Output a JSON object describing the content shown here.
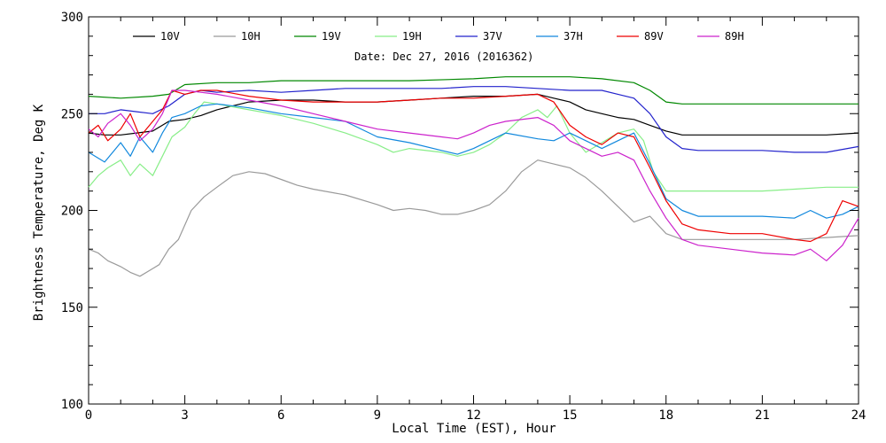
{
  "chart_data": {
    "type": "line",
    "title": "",
    "subtitle": "Date: Dec 27, 2016 (2016362)",
    "xlabel": "Local Time (EST), Hour",
    "ylabel": "Brightness Temperature, Deg K",
    "xlim": [
      0,
      24
    ],
    "ylim": [
      100,
      300
    ],
    "x_ticks": [
      0,
      3,
      6,
      9,
      12,
      15,
      18,
      21,
      24
    ],
    "y_ticks": [
      100,
      150,
      200,
      250,
      300
    ],
    "x_tick_labels": [
      "0",
      "3",
      "6",
      "9",
      "12",
      "15",
      "18",
      "21",
      "24"
    ],
    "y_tick_labels": [
      "100",
      "150",
      "200",
      "250",
      "300"
    ],
    "grid": false,
    "legend_position": "top",
    "series": [
      {
        "name": "10V",
        "color": "#000000",
        "points": [
          [
            0,
            240
          ],
          [
            0.5,
            239
          ],
          [
            1,
            239
          ],
          [
            1.5,
            240
          ],
          [
            2,
            241
          ],
          [
            2.5,
            246
          ],
          [
            3,
            247
          ],
          [
            3.5,
            249
          ],
          [
            4,
            252
          ],
          [
            5,
            256
          ],
          [
            6,
            257
          ],
          [
            7,
            257
          ],
          [
            8,
            256
          ],
          [
            9,
            256
          ],
          [
            10,
            257
          ],
          [
            11,
            258
          ],
          [
            12,
            259
          ],
          [
            13,
            259
          ],
          [
            14,
            260
          ],
          [
            14.5,
            258
          ],
          [
            15,
            256
          ],
          [
            15.5,
            252
          ],
          [
            16,
            250
          ],
          [
            16.5,
            248
          ],
          [
            17,
            247
          ],
          [
            17.5,
            244
          ],
          [
            18,
            241
          ],
          [
            18.5,
            239
          ],
          [
            19,
            239
          ],
          [
            20,
            239
          ],
          [
            21,
            239
          ],
          [
            22,
            239
          ],
          [
            23,
            239
          ],
          [
            24,
            240
          ]
        ]
      },
      {
        "name": "10H",
        "color": "#9a9a9a",
        "points": [
          [
            0,
            180
          ],
          [
            0.3,
            178
          ],
          [
            0.6,
            174
          ],
          [
            1,
            171
          ],
          [
            1.3,
            168
          ],
          [
            1.6,
            166
          ],
          [
            2,
            170
          ],
          [
            2.2,
            172
          ],
          [
            2.5,
            180
          ],
          [
            2.8,
            185
          ],
          [
            3.2,
            200
          ],
          [
            3.6,
            207
          ],
          [
            4,
            212
          ],
          [
            4.5,
            218
          ],
          [
            5,
            220
          ],
          [
            5.5,
            219
          ],
          [
            6,
            216
          ],
          [
            6.5,
            213
          ],
          [
            7,
            211
          ],
          [
            8,
            208
          ],
          [
            9,
            203
          ],
          [
            9.5,
            200
          ],
          [
            10,
            201
          ],
          [
            10.5,
            200
          ],
          [
            11,
            198
          ],
          [
            11.5,
            198
          ],
          [
            12,
            200
          ],
          [
            12.5,
            203
          ],
          [
            13,
            210
          ],
          [
            13.5,
            220
          ],
          [
            14,
            226
          ],
          [
            14.5,
            224
          ],
          [
            15,
            222
          ],
          [
            15.5,
            217
          ],
          [
            16,
            210
          ],
          [
            16.5,
            202
          ],
          [
            17,
            194
          ],
          [
            17.5,
            197
          ],
          [
            18,
            188
          ],
          [
            18.5,
            185
          ],
          [
            19,
            185
          ],
          [
            20,
            185
          ],
          [
            21,
            185
          ],
          [
            22,
            185
          ],
          [
            23,
            186
          ],
          [
            24,
            187
          ]
        ]
      },
      {
        "name": "19V",
        "color": "#008800",
        "points": [
          [
            0,
            259
          ],
          [
            1,
            258
          ],
          [
            2,
            259
          ],
          [
            2.5,
            260
          ],
          [
            3,
            265
          ],
          [
            4,
            266
          ],
          [
            5,
            266
          ],
          [
            6,
            267
          ],
          [
            8,
            267
          ],
          [
            10,
            267
          ],
          [
            12,
            268
          ],
          [
            13,
            269
          ],
          [
            14,
            269
          ],
          [
            15,
            269
          ],
          [
            16,
            268
          ],
          [
            17,
            266
          ],
          [
            17.5,
            262
          ],
          [
            18,
            256
          ],
          [
            18.5,
            255
          ],
          [
            19,
            255
          ],
          [
            20,
            255
          ],
          [
            22,
            255
          ],
          [
            24,
            255
          ]
        ]
      },
      {
        "name": "19H",
        "color": "#88ee88",
        "points": [
          [
            0,
            212
          ],
          [
            0.3,
            218
          ],
          [
            0.6,
            222
          ],
          [
            1,
            226
          ],
          [
            1.3,
            218
          ],
          [
            1.6,
            224
          ],
          [
            2,
            218
          ],
          [
            2.3,
            228
          ],
          [
            2.6,
            238
          ],
          [
            3,
            243
          ],
          [
            3.3,
            250
          ],
          [
            3.6,
            256
          ],
          [
            4,
            255
          ],
          [
            5,
            252
          ],
          [
            6,
            249
          ],
          [
            7,
            245
          ],
          [
            8,
            240
          ],
          [
            9,
            234
          ],
          [
            9.5,
            230
          ],
          [
            10,
            232
          ],
          [
            11,
            230
          ],
          [
            11.5,
            228
          ],
          [
            12,
            230
          ],
          [
            12.5,
            234
          ],
          [
            13,
            240
          ],
          [
            13.5,
            248
          ],
          [
            14,
            252
          ],
          [
            14.3,
            248
          ],
          [
            14.6,
            254
          ],
          [
            15,
            240
          ],
          [
            15.5,
            230
          ],
          [
            16,
            235
          ],
          [
            16.5,
            240
          ],
          [
            17,
            242
          ],
          [
            17.3,
            236
          ],
          [
            17.6,
            220
          ],
          [
            18,
            210
          ],
          [
            19,
            210
          ],
          [
            20,
            210
          ],
          [
            21,
            210
          ],
          [
            22,
            211
          ],
          [
            23,
            212
          ],
          [
            24,
            212
          ]
        ]
      },
      {
        "name": "37V",
        "color": "#2222cc",
        "points": [
          [
            0,
            250
          ],
          [
            0.5,
            250
          ],
          [
            1,
            252
          ],
          [
            1.5,
            251
          ],
          [
            2,
            250
          ],
          [
            2.5,
            254
          ],
          [
            3,
            260
          ],
          [
            3.5,
            262
          ],
          [
            4,
            261
          ],
          [
            5,
            262
          ],
          [
            6,
            261
          ],
          [
            7,
            262
          ],
          [
            8,
            263
          ],
          [
            9,
            263
          ],
          [
            10,
            263
          ],
          [
            11,
            263
          ],
          [
            12,
            264
          ],
          [
            13,
            264
          ],
          [
            14,
            263
          ],
          [
            15,
            262
          ],
          [
            16,
            262
          ],
          [
            16.5,
            260
          ],
          [
            17,
            258
          ],
          [
            17.5,
            250
          ],
          [
            18,
            238
          ],
          [
            18.5,
            232
          ],
          [
            19,
            231
          ],
          [
            20,
            231
          ],
          [
            21,
            231
          ],
          [
            22,
            230
          ],
          [
            23,
            230
          ],
          [
            24,
            233
          ]
        ]
      },
      {
        "name": "37H",
        "color": "#1188dd",
        "points": [
          [
            0,
            230
          ],
          [
            0.5,
            225
          ],
          [
            1,
            235
          ],
          [
            1.3,
            228
          ],
          [
            1.6,
            238
          ],
          [
            2,
            230
          ],
          [
            2.3,
            240
          ],
          [
            2.6,
            248
          ],
          [
            3,
            250
          ],
          [
            3.5,
            254
          ],
          [
            4,
            255
          ],
          [
            5,
            253
          ],
          [
            6,
            250
          ],
          [
            7,
            248
          ],
          [
            8,
            246
          ],
          [
            9,
            238
          ],
          [
            10,
            235
          ],
          [
            11,
            231
          ],
          [
            11.5,
            229
          ],
          [
            12,
            232
          ],
          [
            12.5,
            236
          ],
          [
            13,
            240
          ],
          [
            14,
            237
          ],
          [
            14.5,
            236
          ],
          [
            15,
            240
          ],
          [
            15.5,
            236
          ],
          [
            16,
            232
          ],
          [
            16.5,
            236
          ],
          [
            17,
            240
          ],
          [
            17.5,
            224
          ],
          [
            18,
            206
          ],
          [
            18.5,
            200
          ],
          [
            19,
            197
          ],
          [
            20,
            197
          ],
          [
            21,
            197
          ],
          [
            22,
            196
          ],
          [
            22.5,
            200
          ],
          [
            23,
            196
          ],
          [
            23.5,
            198
          ],
          [
            24,
            202
          ]
        ]
      },
      {
        "name": "89V",
        "color": "#ee0000",
        "points": [
          [
            0,
            240
          ],
          [
            0.3,
            244
          ],
          [
            0.6,
            236
          ],
          [
            1,
            242
          ],
          [
            1.3,
            250
          ],
          [
            1.6,
            238
          ],
          [
            2,
            246
          ],
          [
            2.3,
            252
          ],
          [
            2.6,
            262
          ],
          [
            3,
            260
          ],
          [
            3.5,
            262
          ],
          [
            4,
            262
          ],
          [
            5,
            259
          ],
          [
            6,
            257
          ],
          [
            7,
            256
          ],
          [
            8,
            256
          ],
          [
            9,
            256
          ],
          [
            10,
            257
          ],
          [
            11,
            258
          ],
          [
            12,
            258
          ],
          [
            13,
            259
          ],
          [
            14,
            260
          ],
          [
            14.5,
            256
          ],
          [
            15,
            244
          ],
          [
            15.5,
            238
          ],
          [
            16,
            234
          ],
          [
            16.5,
            240
          ],
          [
            17,
            238
          ],
          [
            17.5,
            222
          ],
          [
            18,
            205
          ],
          [
            18.5,
            193
          ],
          [
            19,
            190
          ],
          [
            20,
            188
          ],
          [
            21,
            188
          ],
          [
            22,
            185
          ],
          [
            22.5,
            184
          ],
          [
            23,
            188
          ],
          [
            23.5,
            205
          ],
          [
            24,
            202
          ]
        ]
      },
      {
        "name": "89H",
        "color": "#cc22cc",
        "points": [
          [
            0,
            242
          ],
          [
            0.3,
            238
          ],
          [
            0.6,
            245
          ],
          [
            1,
            250
          ],
          [
            1.3,
            244
          ],
          [
            1.6,
            236
          ],
          [
            2,
            242
          ],
          [
            2.3,
            250
          ],
          [
            2.6,
            262
          ],
          [
            3,
            262
          ],
          [
            3.5,
            261
          ],
          [
            4,
            260
          ],
          [
            5,
            257
          ],
          [
            6,
            254
          ],
          [
            7,
            250
          ],
          [
            8,
            246
          ],
          [
            9,
            242
          ],
          [
            10,
            240
          ],
          [
            11,
            238
          ],
          [
            11.5,
            237
          ],
          [
            12,
            240
          ],
          [
            12.5,
            244
          ],
          [
            13,
            246
          ],
          [
            14,
            248
          ],
          [
            14.5,
            244
          ],
          [
            15,
            236
          ],
          [
            15.5,
            232
          ],
          [
            16,
            228
          ],
          [
            16.5,
            230
          ],
          [
            17,
            226
          ],
          [
            17.5,
            210
          ],
          [
            18,
            196
          ],
          [
            18.5,
            185
          ],
          [
            19,
            182
          ],
          [
            20,
            180
          ],
          [
            21,
            178
          ],
          [
            22,
            177
          ],
          [
            22.5,
            180
          ],
          [
            23,
            174
          ],
          [
            23.5,
            182
          ],
          [
            24,
            196
          ]
        ]
      }
    ]
  }
}
